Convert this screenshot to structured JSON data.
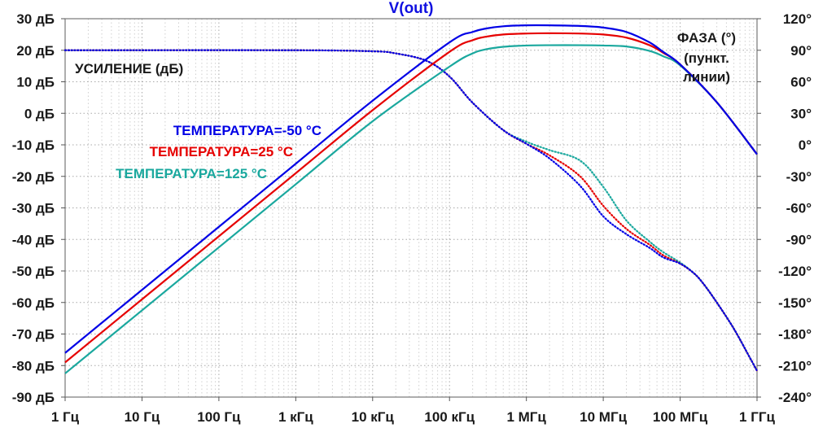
{
  "chart_data": {
    "type": "line",
    "title": "V(out)",
    "x_scale": "log",
    "xlim": [
      1,
      1000000000
    ],
    "x_ticks": [
      {
        "value": 1,
        "label": "1 Гц"
      },
      {
        "value": 10,
        "label": "10 Гц"
      },
      {
        "value": 100,
        "label": "100 Гц"
      },
      {
        "value": 1000,
        "label": "1 кГц"
      },
      {
        "value": 10000,
        "label": "10 кГц"
      },
      {
        "value": 100000,
        "label": "100 кГц"
      },
      {
        "value": 1000000,
        "label": "1 МГц"
      },
      {
        "value": 10000000,
        "label": "10 МГц"
      },
      {
        "value": 100000000,
        "label": "100 МГц"
      },
      {
        "value": 1000000000,
        "label": "1 ГГц"
      }
    ],
    "y_left": {
      "unit": "дБ",
      "ylim": [
        -90,
        30
      ],
      "ticks": [
        {
          "value": 30,
          "label": "30 дБ"
        },
        {
          "value": 20,
          "label": "20 дБ"
        },
        {
          "value": 10,
          "label": "10 дБ"
        },
        {
          "value": 0,
          "label": "0 дБ"
        },
        {
          "value": -10,
          "label": "-10 дБ"
        },
        {
          "value": -20,
          "label": "-20 дБ"
        },
        {
          "value": -30,
          "label": "-30 дБ"
        },
        {
          "value": -40,
          "label": "-40 дБ"
        },
        {
          "value": -50,
          "label": "-50 дБ"
        },
        {
          "value": -60,
          "label": "-60 дБ"
        },
        {
          "value": -70,
          "label": "-70 дБ"
        },
        {
          "value": -80,
          "label": "-80 дБ"
        },
        {
          "value": -90,
          "label": "-90 дБ"
        }
      ]
    },
    "y_right": {
      "unit": "°",
      "ylim": [
        -240,
        120
      ],
      "ticks": [
        {
          "value": 120,
          "label": "120°"
        },
        {
          "value": 90,
          "label": "90°"
        },
        {
          "value": 60,
          "label": "60°"
        },
        {
          "value": 30,
          "label": "30°"
        },
        {
          "value": 0,
          "label": "0°"
        },
        {
          "value": -30,
          "label": "-30°"
        },
        {
          "value": -60,
          "label": "-60°"
        },
        {
          "value": -90,
          "label": "-90°"
        },
        {
          "value": -120,
          "label": "-120°"
        },
        {
          "value": -150,
          "label": "-150°"
        },
        {
          "value": -180,
          "label": "-180°"
        },
        {
          "value": -210,
          "label": "-210°"
        },
        {
          "value": -240,
          "label": "-240°"
        }
      ]
    },
    "grid": true,
    "annotations": {
      "gain_label": "УСИЛЕНИЕ (дБ)",
      "phase_label_lines": [
        "ФАЗА (°)",
        "(пункт.",
        "линии)"
      ]
    },
    "legend_placement": "middle-left",
    "series": [
      {
        "name": "ТЕМПЕРАТУРА=-50 °C",
        "color": "#0000e6",
        "gain_db": {
          "x": [
            1,
            10,
            100,
            1000,
            10000,
            100000,
            200000,
            300000,
            500000,
            1000000,
            2000000,
            5000000,
            10000000,
            20000000,
            40000000,
            60000000,
            100000000,
            300000000,
            1000000000
          ],
          "y": [
            -76,
            -56,
            -36,
            -16,
            4,
            22.5,
            25.8,
            26.9,
            27.6,
            27.9,
            27.9,
            27.7,
            27.2,
            25.8,
            22.5,
            19.5,
            15.5,
            3.5,
            -13
          ]
        },
        "phase_deg": {
          "x": [
            1,
            1000,
            10000,
            20000,
            50000,
            100000,
            200000,
            500000,
            1000000,
            2000000,
            5000000,
            10000000,
            20000000,
            40000000,
            60000000,
            100000000,
            150000000,
            200000000,
            300000000,
            500000000,
            800000000,
            1000000000
          ],
          "y": [
            90,
            90,
            89,
            87,
            80,
            65,
            40,
            14,
            1,
            -13,
            -39,
            -68,
            -85,
            -98,
            -107,
            -113,
            -122,
            -132,
            -150,
            -175,
            -202,
            -215
          ]
        }
      },
      {
        "name": "ТЕМПЕРАТУРА=25 °C",
        "color": "#e60000",
        "gain_db": {
          "x": [
            1,
            10,
            100,
            1000,
            10000,
            100000,
            200000,
            300000,
            500000,
            1000000,
            2000000,
            5000000,
            10000000,
            20000000,
            40000000,
            60000000,
            100000000,
            300000000,
            1000000000
          ],
          "y": [
            -79,
            -59,
            -39,
            -19,
            1,
            19.5,
            23.2,
            24.3,
            25.0,
            25.3,
            25.4,
            25.3,
            25.0,
            24.0,
            21.6,
            19.2,
            15.5,
            3.5,
            -13
          ]
        },
        "phase_deg": {
          "x": [
            1,
            1000,
            10000,
            20000,
            50000,
            100000,
            200000,
            500000,
            1000000,
            2000000,
            5000000,
            10000000,
            20000000,
            40000000,
            60000000,
            100000000,
            150000000,
            200000000,
            300000000,
            500000000,
            800000000,
            1000000000
          ],
          "y": [
            90,
            90,
            89,
            87,
            80,
            65,
            40,
            14,
            1,
            -10,
            -30,
            -58,
            -80,
            -95,
            -105,
            -113,
            -122,
            -132,
            -150,
            -175,
            -202,
            -215
          ]
        }
      },
      {
        "name": "ТЕМПЕРАТУРА=125 °C",
        "color": "#1aa89e",
        "gain_db": {
          "x": [
            1,
            10,
            100,
            1000,
            10000,
            100000,
            200000,
            300000,
            500000,
            1000000,
            2000000,
            5000000,
            10000000,
            20000000,
            40000000,
            60000000,
            100000000,
            300000000,
            1000000000
          ],
          "y": [
            -82.5,
            -62.5,
            -42.5,
            -22.5,
            -2.5,
            14.8,
            19.0,
            20.3,
            21.1,
            21.5,
            21.6,
            21.6,
            21.5,
            21.2,
            19.8,
            18.1,
            15.2,
            3.5,
            -13
          ]
        },
        "phase_deg": {
          "x": [
            1,
            1000,
            10000,
            20000,
            50000,
            100000,
            200000,
            500000,
            1000000,
            2000000,
            5000000,
            10000000,
            20000000,
            40000000,
            60000000,
            100000000,
            150000000,
            200000000,
            300000000,
            500000000,
            800000000,
            1000000000
          ],
          "y": [
            90,
            90,
            89,
            87,
            80,
            65,
            40,
            14,
            3,
            -5,
            -15,
            -40,
            -72,
            -92,
            -102,
            -112,
            -122,
            -132,
            -150,
            -175,
            -202,
            -215
          ]
        }
      }
    ]
  }
}
